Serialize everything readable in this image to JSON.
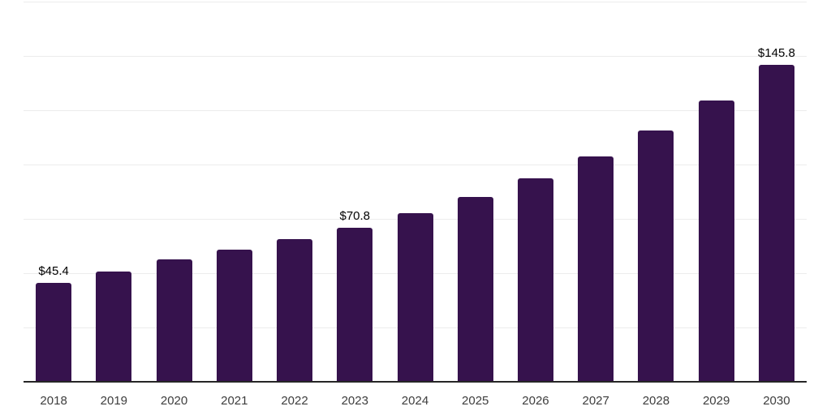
{
  "chart_data": {
    "type": "bar",
    "title": "",
    "xlabel": "",
    "ylabel": "",
    "categories": [
      "2018",
      "2019",
      "2020",
      "2021",
      "2022",
      "2023",
      "2024",
      "2025",
      "2026",
      "2027",
      "2028",
      "2029",
      "2030"
    ],
    "values": [
      45.4,
      50.6,
      56.2,
      60.8,
      65.6,
      70.8,
      77.5,
      85.2,
      93.7,
      103.8,
      115.7,
      129.4,
      145.8
    ],
    "data_labels": [
      "$45.4",
      "",
      "",
      "",
      "",
      "$70.8",
      "",
      "",
      "",
      "",
      "",
      "",
      "$145.8"
    ],
    "ylim": [
      0,
      175
    ],
    "gridline_step": 25,
    "grid": "horizontal-light",
    "legend": "none",
    "colors": {
      "bar": "#36124D",
      "gridline": "#ececec",
      "axis_line": "#262626",
      "tick_label": "#3d3d3d",
      "data_label": "#000000",
      "background": "#ffffff"
    }
  }
}
